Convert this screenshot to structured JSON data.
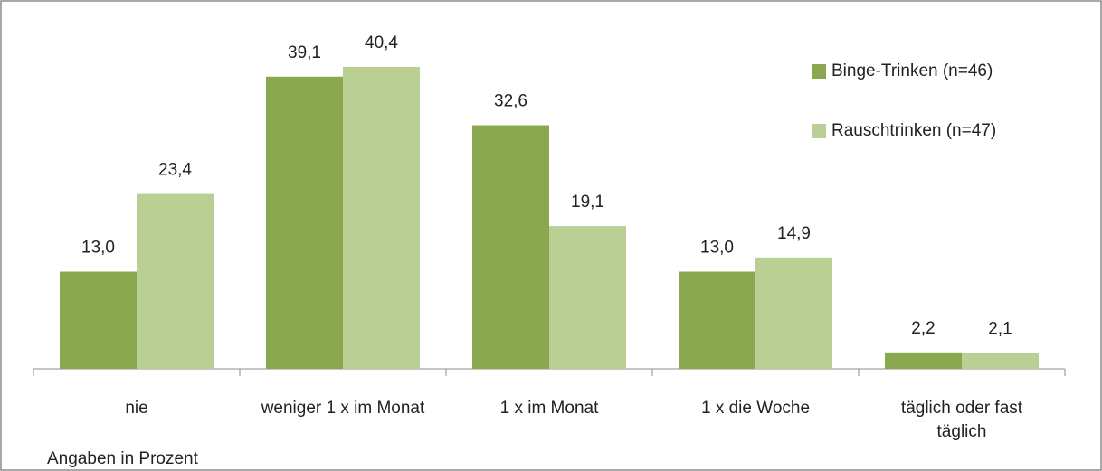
{
  "chart_data": {
    "type": "bar",
    "categories": [
      "nie",
      "weniger 1 x im Monat",
      "1 x im Monat",
      "1 x die Woche",
      "täglich oder fast täglich"
    ],
    "series": [
      {
        "name": "Binge-Trinken (n=46)",
        "color": "#8aa84f",
        "values": [
          13.0,
          39.1,
          32.6,
          13.0,
          2.2
        ],
        "value_labels": [
          "13,0",
          "39,1",
          "32,6",
          "13,0",
          "2,2"
        ]
      },
      {
        "name": "Rauschtrinken (n=47)",
        "color": "#b9cf94",
        "values": [
          23.4,
          40.4,
          19.1,
          14.9,
          2.1
        ],
        "value_labels": [
          "23,4",
          "40,4",
          "19,1",
          "14,9",
          "2,1"
        ]
      }
    ],
    "ylim": [
      0,
      45
    ],
    "legend": "top-right",
    "annotation": "Angaben in Prozent"
  }
}
